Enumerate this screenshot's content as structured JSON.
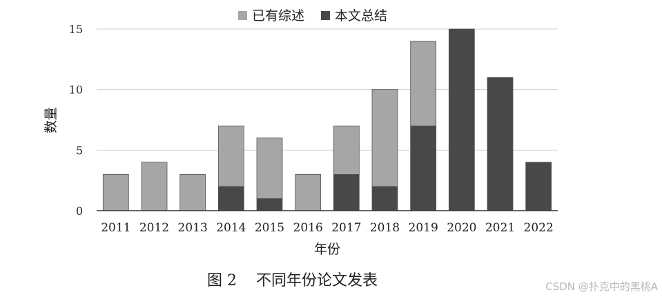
{
  "chart_data": {
    "type": "bar",
    "stacked": true,
    "categories": [
      "2011",
      "2012",
      "2013",
      "2014",
      "2015",
      "2016",
      "2017",
      "2018",
      "2019",
      "2020",
      "2021",
      "2022"
    ],
    "series": [
      {
        "name": "本文总结",
        "color": "#48484a",
        "values": [
          0,
          0,
          0,
          2,
          1,
          0,
          3,
          2,
          7,
          15,
          11,
          4
        ]
      },
      {
        "name": "已有综述",
        "color": "#a6a6a8",
        "values": [
          3,
          4,
          3,
          5,
          5,
          3,
          4,
          8,
          7,
          0,
          0,
          0
        ]
      }
    ],
    "xlabel": "年份",
    "ylabel": "数量",
    "ylim": [
      0,
      15
    ],
    "yticks": [
      0,
      5,
      10,
      15
    ],
    "grid": true,
    "legend_position": "top-center"
  },
  "caption": "图 2    不同年份论文发表",
  "watermark": "CSDN @扑克中的黑桃A"
}
